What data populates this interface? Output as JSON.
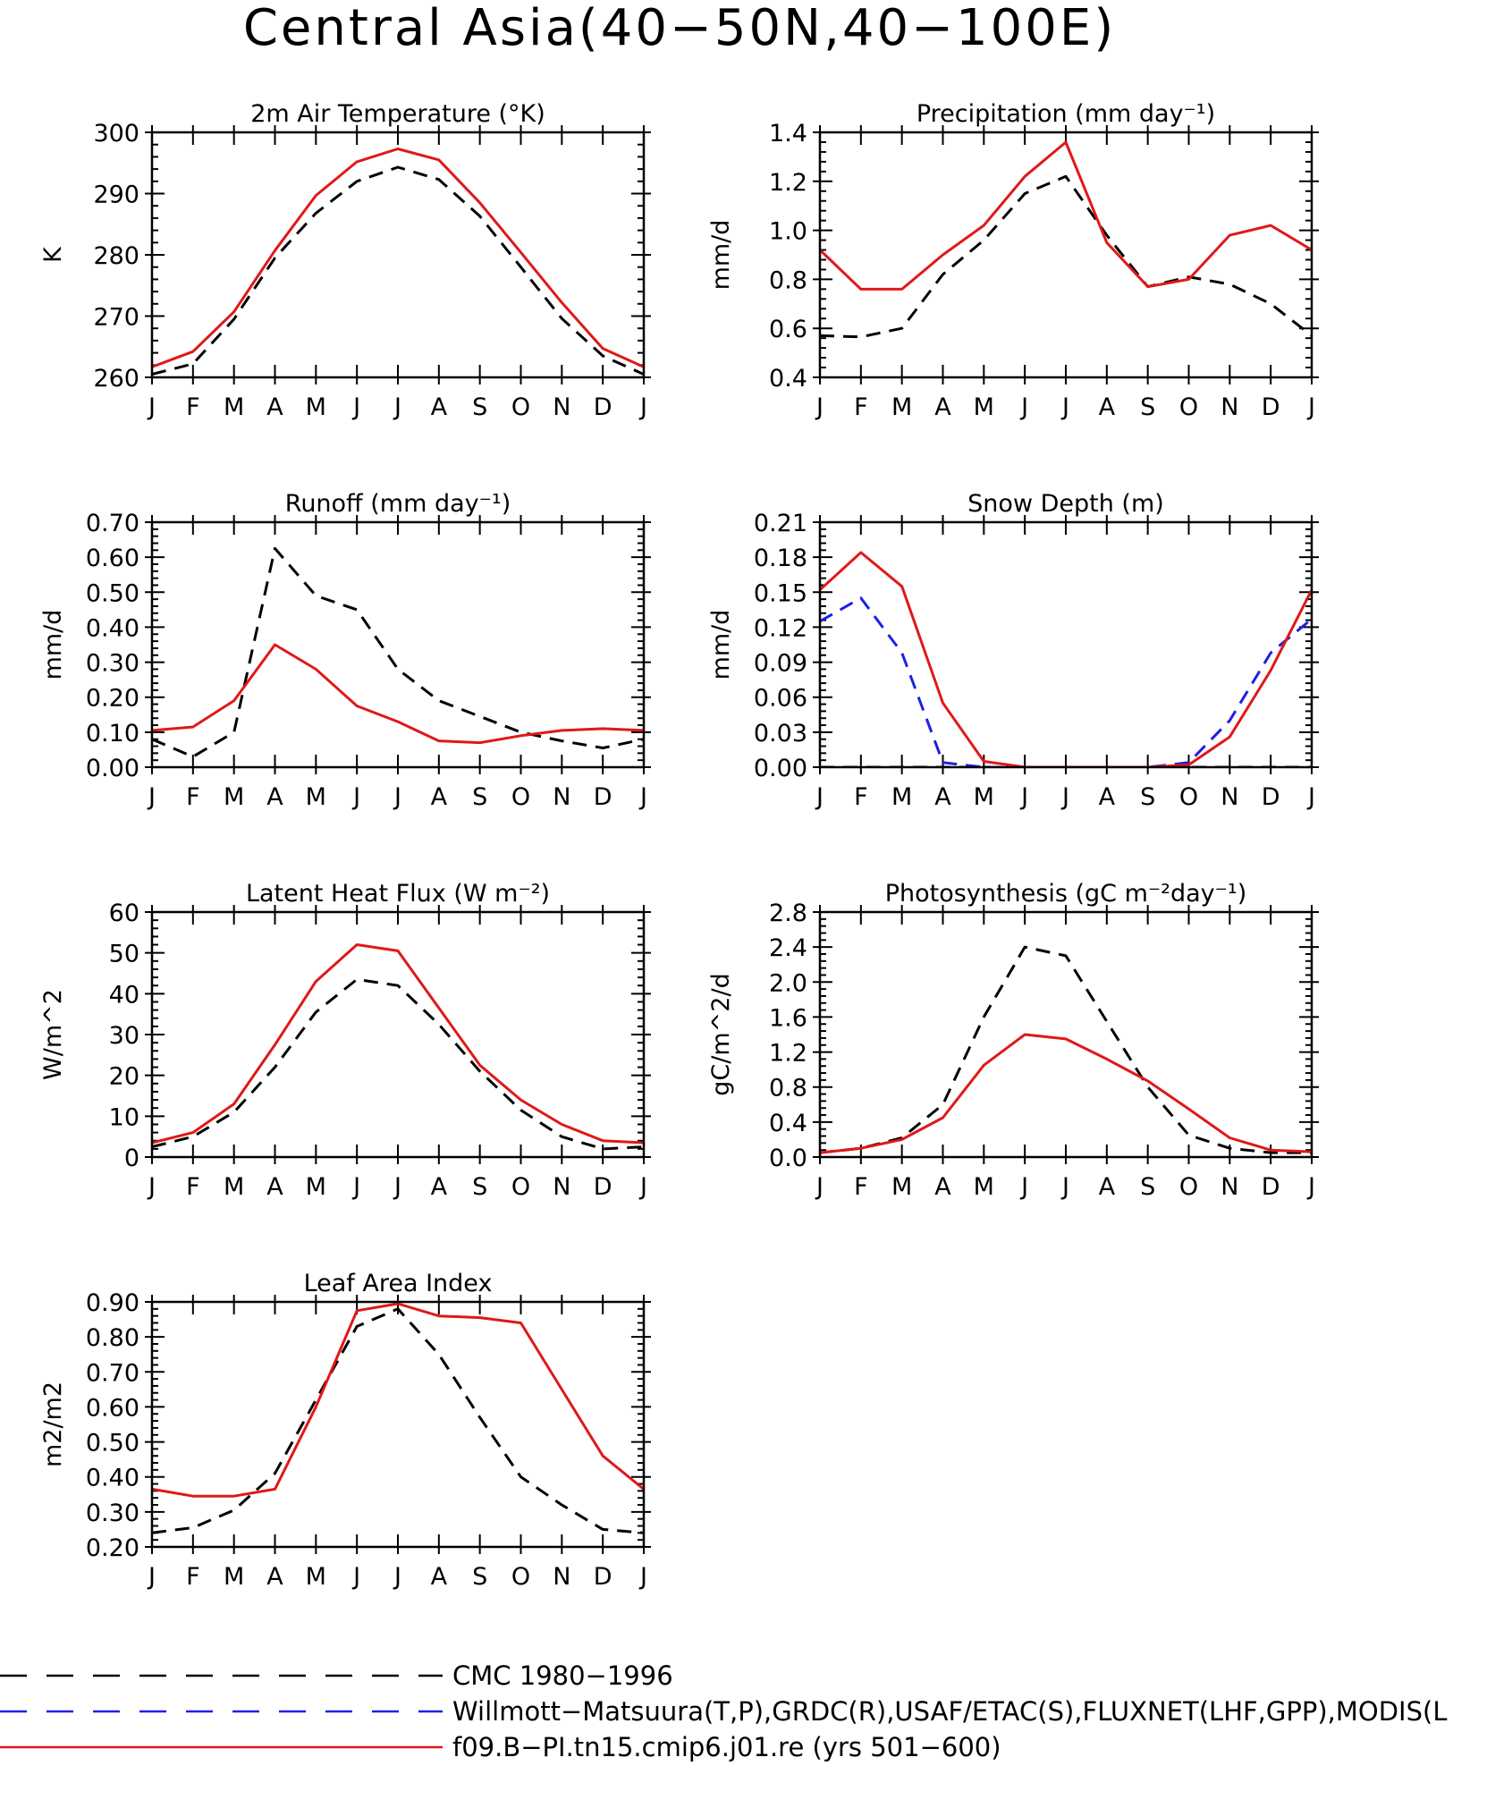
{
  "title": "Central Asia(40−50N,40−100E)",
  "months": [
    "J",
    "F",
    "M",
    "A",
    "M",
    "J",
    "J",
    "A",
    "S",
    "O",
    "N",
    "D",
    "J"
  ],
  "colors": {
    "obs": "#000000",
    "alt_obs": "#1f1fe6",
    "model": "#e01818"
  },
  "legend": [
    {
      "label": "CMC 1980−1996",
      "color": "#000000",
      "dash": "dashed"
    },
    {
      "label": "Willmott−Matsuura(T,P),GRDC(R),USAF/ETAC(S),FLUXNET(LHF,GPP),MODIS(L",
      "color": "#1f1fe6",
      "dash": "dashed"
    },
    {
      "label": "f09.B−PI.tn15.cmip6.j01.re (yrs 501−600)",
      "color": "#e01818",
      "dash": "solid"
    }
  ],
  "chart_data": [
    {
      "type": "line",
      "title": "2m Air Temperature (°K)",
      "ylabel": "K",
      "ylim": [
        260,
        300
      ],
      "yticks": [
        "260",
        "270",
        "280",
        "290",
        "300"
      ],
      "x": [
        "J",
        "F",
        "M",
        "A",
        "M",
        "J",
        "J",
        "A",
        "S",
        "O",
        "N",
        "D",
        "J"
      ],
      "series": [
        {
          "key": "obs",
          "values": [
            260.5,
            262.2,
            269.5,
            279.5,
            286.8,
            292.0,
            294.3,
            292.3,
            286.3,
            278.0,
            269.6,
            263.5,
            260.5
          ]
        },
        {
          "key": "model",
          "values": [
            261.7,
            264.2,
            270.7,
            280.7,
            289.7,
            295.2,
            297.3,
            295.5,
            288.5,
            280.4,
            272.2,
            264.7,
            261.7
          ]
        }
      ]
    },
    {
      "type": "line",
      "title": "Precipitation (mm day⁻¹)",
      "ylabel": "mm/d",
      "ylim": [
        0.4,
        1.4
      ],
      "yticks": [
        "0.4",
        "0.6",
        "0.8",
        "1.0",
        "1.2",
        "1.4"
      ],
      "x": [
        "J",
        "F",
        "M",
        "A",
        "M",
        "J",
        "J",
        "A",
        "S",
        "O",
        "N",
        "D",
        "J"
      ],
      "series": [
        {
          "key": "obs",
          "values": [
            0.57,
            0.565,
            0.6,
            0.82,
            0.96,
            1.15,
            1.22,
            0.98,
            0.77,
            0.81,
            0.78,
            0.7,
            0.57
          ]
        },
        {
          "key": "model",
          "values": [
            0.92,
            0.76,
            0.76,
            0.9,
            1.02,
            1.22,
            1.36,
            0.95,
            0.77,
            0.8,
            0.98,
            1.02,
            0.92
          ]
        }
      ]
    },
    {
      "type": "line",
      "title": "Runoff (mm day⁻¹)",
      "ylabel": "mm/d",
      "ylim": [
        0,
        0.7
      ],
      "yticks": [
        "0.00",
        "0.10",
        "0.20",
        "0.30",
        "0.40",
        "0.50",
        "0.60",
        "0.70"
      ],
      "x": [
        "J",
        "F",
        "M",
        "A",
        "M",
        "J",
        "J",
        "A",
        "S",
        "O",
        "N",
        "D",
        "J"
      ],
      "series": [
        {
          "key": "obs",
          "values": [
            0.08,
            0.03,
            0.1,
            0.625,
            0.49,
            0.45,
            0.28,
            0.19,
            0.145,
            0.1,
            0.075,
            0.055,
            0.08
          ]
        },
        {
          "key": "model",
          "values": [
            0.105,
            0.115,
            0.19,
            0.35,
            0.28,
            0.175,
            0.13,
            0.075,
            0.07,
            0.09,
            0.105,
            0.11,
            0.105
          ]
        }
      ]
    },
    {
      "type": "line",
      "title": "Snow Depth (m)",
      "ylabel": "mm/d",
      "ylim": [
        0,
        0.21
      ],
      "yticks": [
        "0.00",
        "0.03",
        "0.06",
        "0.09",
        "0.12",
        "0.15",
        "0.18",
        "0.21"
      ],
      "x": [
        "J",
        "F",
        "M",
        "A",
        "M",
        "J",
        "J",
        "A",
        "S",
        "O",
        "N",
        "D",
        "J"
      ],
      "series": [
        {
          "key": "obs",
          "values": [
            0,
            0,
            0,
            0,
            0,
            0,
            0,
            0,
            0,
            0,
            0,
            0,
            0
          ]
        },
        {
          "key": "alt_obs",
          "values": [
            0.125,
            0.145,
            0.098,
            0.004,
            0.0,
            0.0,
            0.0,
            0.0,
            0.0,
            0.004,
            0.04,
            0.098,
            0.127
          ]
        },
        {
          "key": "model",
          "values": [
            0.152,
            0.184,
            0.155,
            0.055,
            0.005,
            0.0,
            0.0,
            0.0,
            0.0,
            0.002,
            0.026,
            0.083,
            0.152
          ]
        }
      ]
    },
    {
      "type": "line",
      "title": "Latent Heat Flux (W m⁻²)",
      "ylabel": "W/m^2",
      "ylim": [
        0,
        60
      ],
      "yticks": [
        "0",
        "10",
        "20",
        "30",
        "40",
        "50",
        "60"
      ],
      "x": [
        "J",
        "F",
        "M",
        "A",
        "M",
        "J",
        "J",
        "A",
        "S",
        "O",
        "N",
        "D",
        "J"
      ],
      "series": [
        {
          "key": "obs",
          "values": [
            2.5,
            5.0,
            11.0,
            22.0,
            35.5,
            43.5,
            42.0,
            32.5,
            21.0,
            11.5,
            5.0,
            2.0,
            2.5
          ]
        },
        {
          "key": "model",
          "values": [
            3.5,
            6.0,
            13.0,
            27.5,
            43.0,
            52.0,
            50.5,
            36.5,
            22.5,
            14.0,
            8.0,
            4.0,
            3.5
          ]
        }
      ]
    },
    {
      "type": "line",
      "title": "Photosynthesis (gC m⁻²day⁻¹)",
      "ylabel": "gC/m^2/d",
      "ylim": [
        0,
        2.8
      ],
      "yticks": [
        "0.0",
        "0.4",
        "0.8",
        "1.2",
        "1.6",
        "2.0",
        "2.4",
        "2.8"
      ],
      "x": [
        "J",
        "F",
        "M",
        "A",
        "M",
        "J",
        "J",
        "A",
        "S",
        "O",
        "N",
        "D",
        "J"
      ],
      "series": [
        {
          "key": "obs",
          "values": [
            0.05,
            0.1,
            0.22,
            0.6,
            1.6,
            2.4,
            2.3,
            1.55,
            0.8,
            0.25,
            0.1,
            0.05,
            0.05
          ]
        },
        {
          "key": "model",
          "values": [
            0.05,
            0.1,
            0.2,
            0.45,
            1.05,
            1.4,
            1.35,
            1.12,
            0.87,
            0.55,
            0.22,
            0.08,
            0.06
          ]
        }
      ]
    },
    {
      "type": "line",
      "title": "Leaf Area Index",
      "ylabel": "m2/m2",
      "ylim": [
        0.2,
        0.9
      ],
      "yticks": [
        "0.20",
        "0.30",
        "0.40",
        "0.50",
        "0.60",
        "0.70",
        "0.80",
        "0.90"
      ],
      "x": [
        "J",
        "F",
        "M",
        "A",
        "M",
        "J",
        "J",
        "A",
        "S",
        "O",
        "N",
        "D",
        "J"
      ],
      "series": [
        {
          "key": "obs",
          "values": [
            0.24,
            0.255,
            0.305,
            0.41,
            0.62,
            0.83,
            0.88,
            0.75,
            0.57,
            0.4,
            0.32,
            0.25,
            0.24
          ]
        },
        {
          "key": "model",
          "values": [
            0.365,
            0.345,
            0.345,
            0.365,
            0.6,
            0.875,
            0.895,
            0.86,
            0.855,
            0.84,
            0.65,
            0.46,
            0.365
          ]
        }
      ]
    }
  ]
}
